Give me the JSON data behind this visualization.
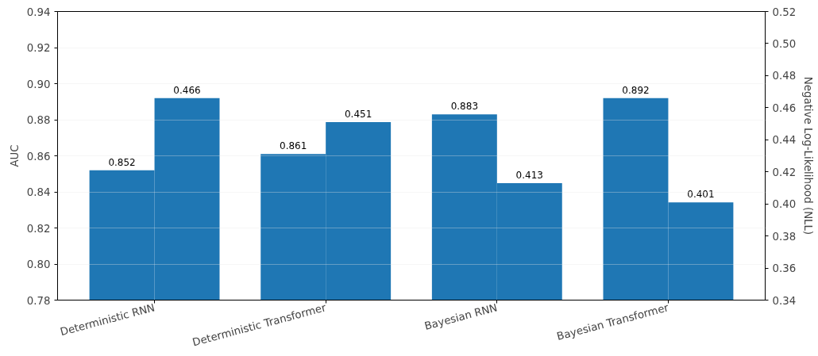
{
  "chart_data": {
    "type": "bar",
    "ylabel": "AUC",
    "y2label": "Negative Log-Likelihood (NLL)",
    "categories": [
      "Deterministic RNN",
      "Deterministic Transformer",
      "Bayesian RNN",
      "Bayesian Transformer"
    ],
    "series": [
      {
        "color": "#1f77b4",
        "values": [
          0.852,
          0.861,
          0.883,
          0.892
        ]
      },
      {
        "color": "#1f77b4",
        "values": [
          0.466,
          0.451,
          0.413,
          0.401
        ],
        "axis": "y2"
      }
    ],
    "ylim": [
      0.78,
      0.94
    ],
    "yticks": [
      0.78,
      {
        "value": 0.8,
        "label": "0.80"
      },
      0.82,
      0.84,
      0.86,
      0.88,
      {
        "value": 0.9,
        "label": "0.90"
      },
      0.92,
      0.94
    ],
    "y2lim": [
      0.34,
      0.52
    ],
    "y2ticks": [
      0.34,
      0.36,
      0.38,
      {
        "value": 0.4,
        "label": "0.40"
      },
      0.42,
      0.44,
      0.46,
      0.48,
      {
        "value": 0.5,
        "label": "0.50"
      },
      0.52
    ],
    "grid": "y",
    "data_labels": true
  }
}
